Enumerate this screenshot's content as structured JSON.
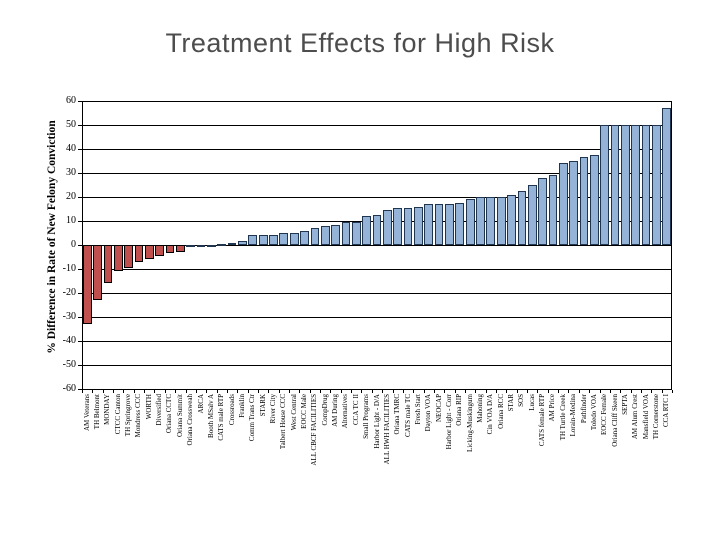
{
  "slide": {
    "title": "Treatment Effects for High Risk"
  },
  "chart_data": {
    "type": "bar",
    "title": "Treatment Effects for High Risk",
    "xlabel": "",
    "ylabel": "% Difference in Rate of New Felony Conviction",
    "ylim": [
      -60,
      60
    ],
    "ytick_step": 10,
    "yticks": [
      60,
      50,
      40,
      30,
      20,
      10,
      0,
      -10,
      -20,
      -30,
      -40,
      -50,
      -60
    ],
    "grid": true,
    "legend": false,
    "categories": [
      "AM Veterans",
      "TH Belmont",
      "MONDAY",
      "CTCC Canton",
      "TH Springrove",
      "Mondress CCC",
      "WORTH",
      "Diversified",
      "Oriana CCTC",
      "Oriana Summit",
      "Oriana Crossweah",
      "ARCA",
      "Booth MSalv A",
      "CATS male RTP",
      "Crossroads",
      "Franklin",
      "Comm Trans Ctr",
      "STARK",
      "River City",
      "Talbert House CCC",
      "West Central",
      "EOCC Male",
      "ALL CBCF FACILITIES",
      "CompDrug",
      "AM During",
      "Alternatives",
      "CCA TC II",
      "Small Programs",
      "Harbor Light - D/A",
      "ALL HWH FACILITIES",
      "Oriana TMRC",
      "CATS male TC",
      "Fresh Start",
      "Dayton VOA",
      "NEOCAP",
      "Harbor Light - Corr",
      "Oriana RIP",
      "Licking-Muskingum",
      "Mahoning",
      "Cin VOA D/A",
      "Oriana RCC",
      "STAR",
      "SOS",
      "Lucas",
      "CATS female RTP",
      "AM Price",
      "TH Turtle Creek",
      "Lorain-Medina",
      "Pathfinder",
      "Toledo VOA",
      "EOCC Female",
      "Oriana Cliff Skeen",
      "SEPTA",
      "AM Alum Crest",
      "Mansfield VOA",
      "TH Cornerstone",
      "CCA RTC I"
    ],
    "values": [
      -33,
      -23,
      -16,
      -11,
      -9.5,
      -7,
      -6,
      -4.5,
      -3.5,
      -3,
      0,
      0,
      0,
      0.5,
      1,
      1.5,
      4,
      4,
      4,
      5,
      5,
      6,
      7,
      8,
      8.5,
      9.5,
      9.5,
      12,
      12.5,
      14.5,
      15.5,
      15.5,
      16,
      17,
      17,
      17,
      17.5,
      19,
      20,
      20,
      20,
      21,
      22.5,
      25,
      28,
      29,
      34,
      35,
      36.5,
      37.5,
      50,
      50,
      50,
      50,
      50,
      50,
      57
    ],
    "colors": {
      "positive_fill": "#95B3D7",
      "positive_border": "#1F3550",
      "negative_fill": "#C0504D",
      "negative_border": "#000000",
      "gridline": "#000000",
      "title_text": "#4d4d4d",
      "axis_text": "#000000"
    }
  }
}
